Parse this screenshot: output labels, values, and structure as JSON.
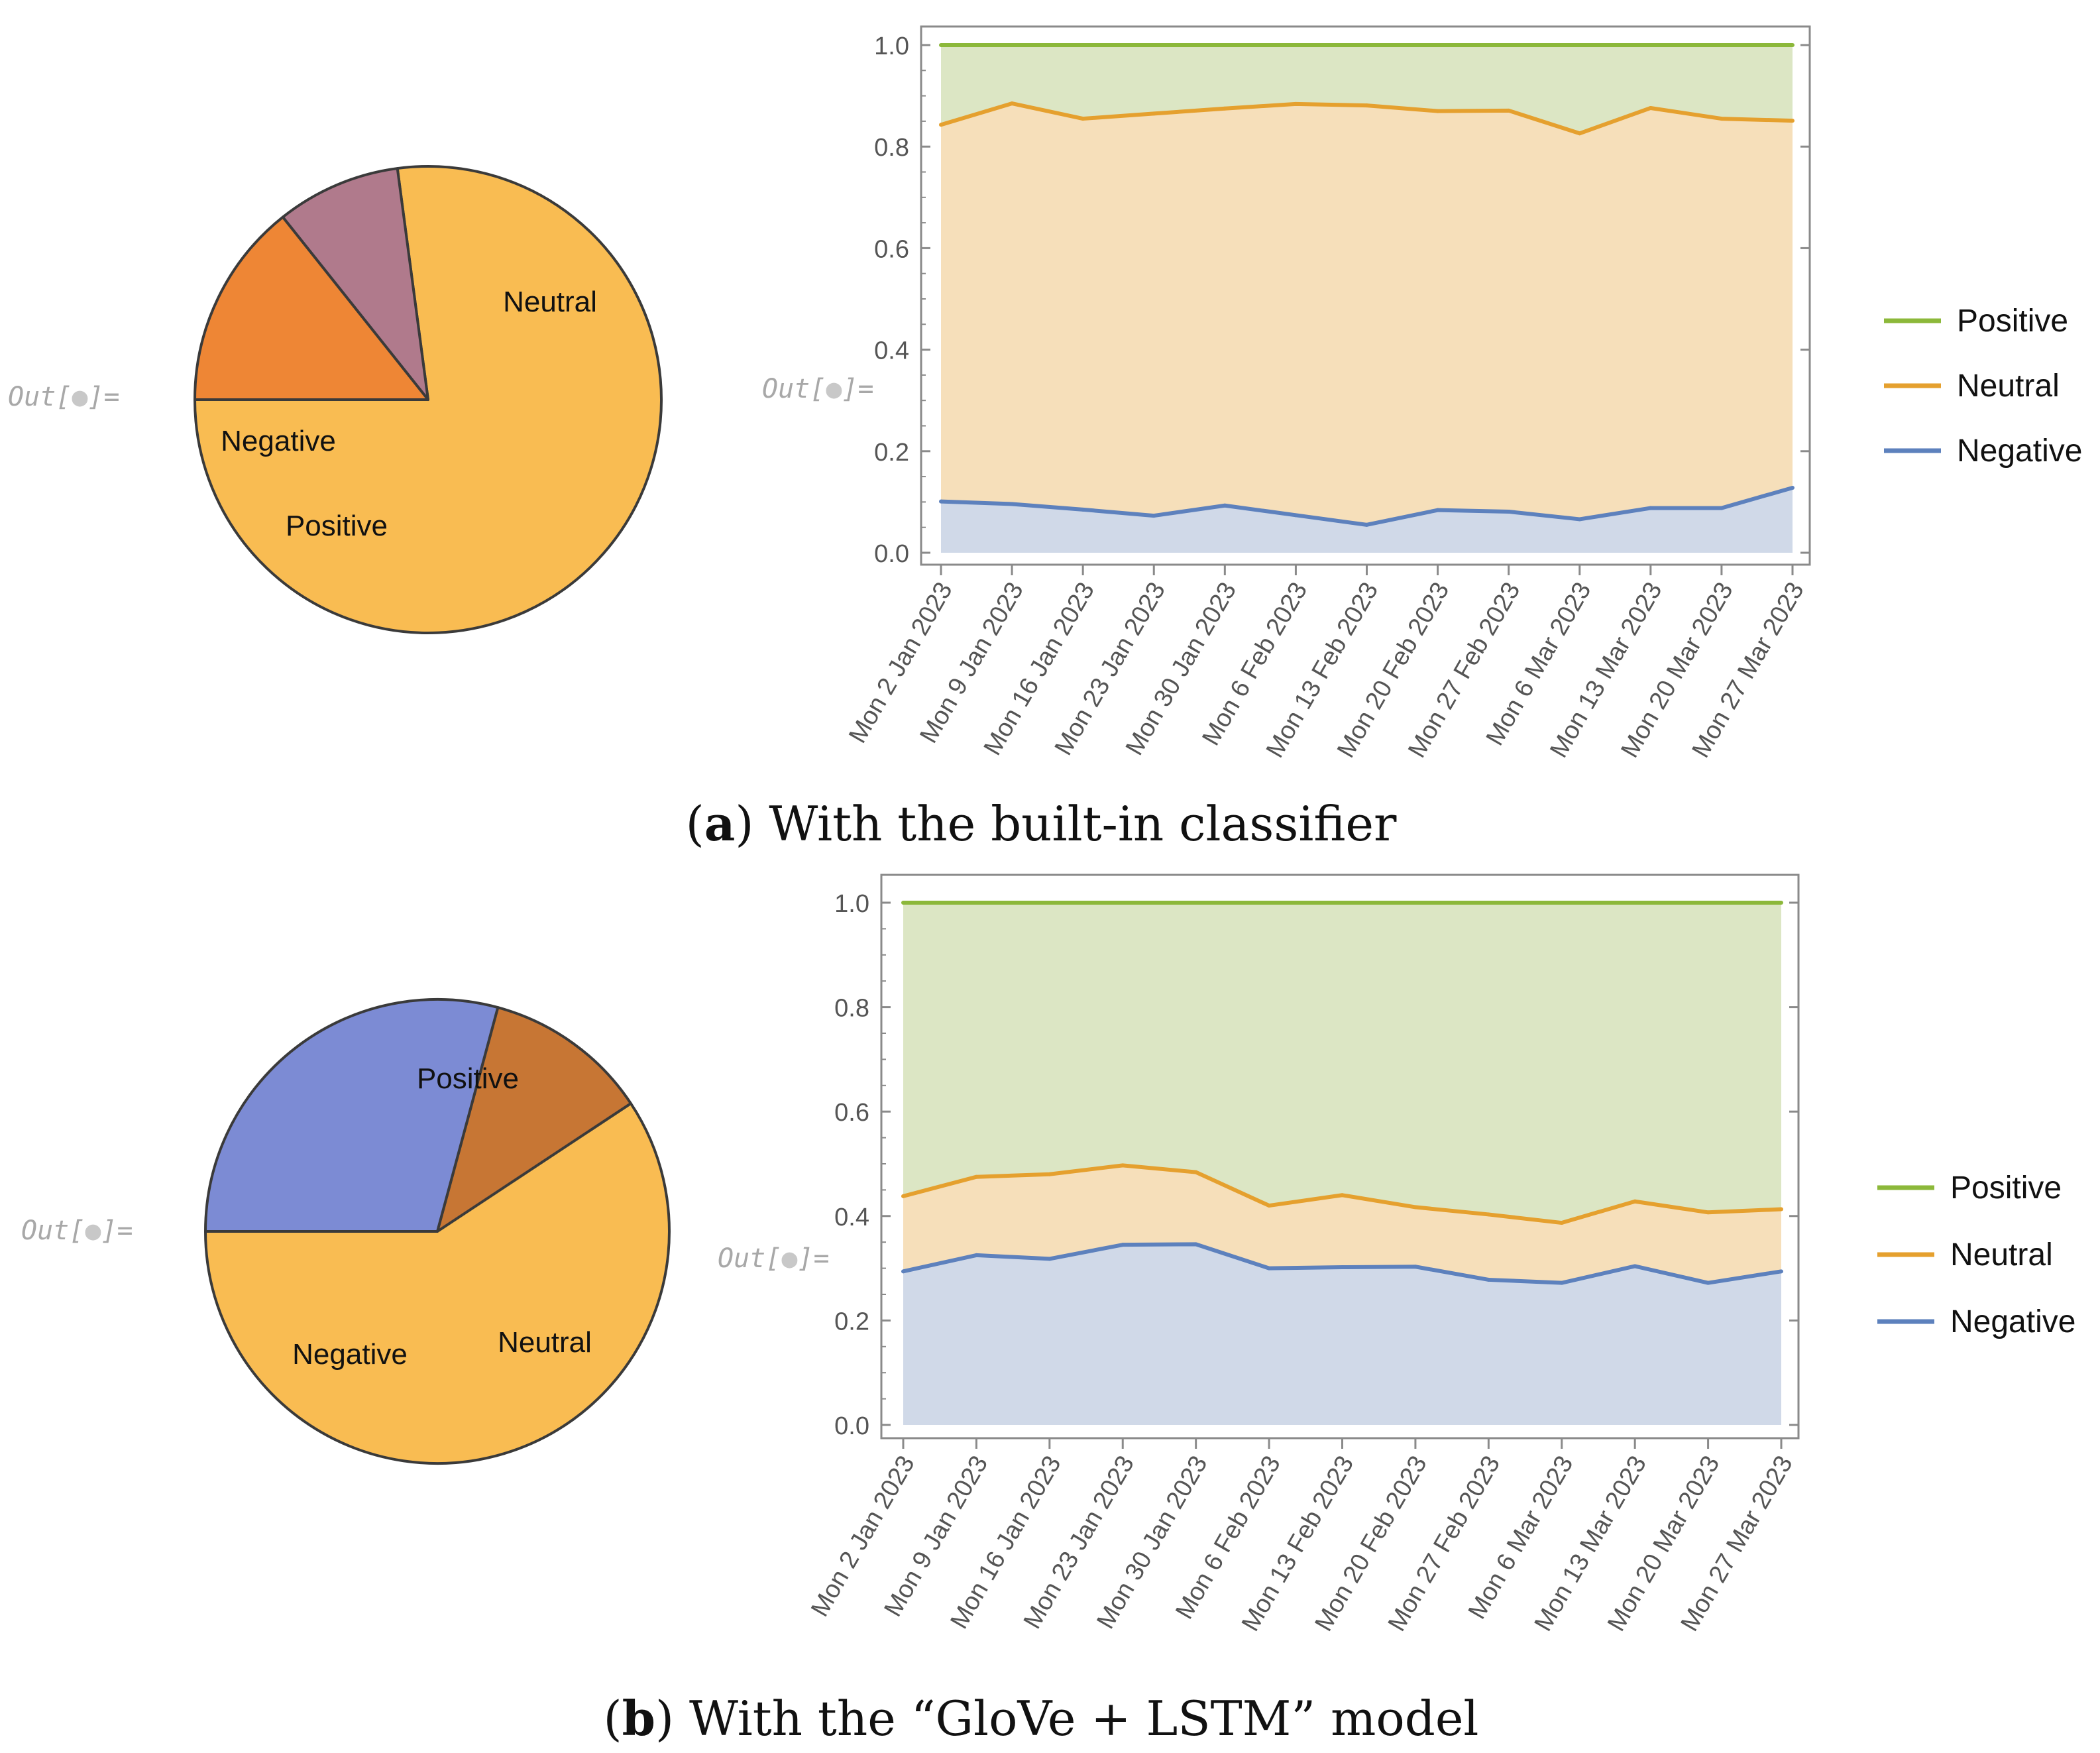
{
  "out_label": "Out[",
  "out_label_end": "]=",
  "colors": {
    "positive": "#8cb83a",
    "neutral": "#e5a02e",
    "negative": "#5d81bd",
    "positive_fill": "#dce6c4",
    "neutral_fill": "#f6dfba",
    "negative_fill": "#d0d9e8",
    "axis": "#8a8a8a",
    "tick_text": "#555555"
  },
  "panels": [
    {
      "caption_letter": "a",
      "caption_text": "With the built-in classifier",
      "pie": {
        "type": "pie",
        "slices": [
          {
            "label": "Neutral",
            "value": 0.771,
            "color": "#f9bc52"
          },
          {
            "label": "Negative",
            "value": 0.086,
            "color": "#b07a8c"
          },
          {
            "label": "Positive",
            "value": 0.143,
            "color": "#ee8635"
          }
        ]
      },
      "chart_data": {
        "type": "area",
        "x": [
          "Mon 2 Jan 2023",
          "Mon 9 Jan 2023",
          "Mon 16 Jan 2023",
          "Mon 23 Jan 2023",
          "Mon 30 Jan 2023",
          "Mon 6 Feb 2023",
          "Mon 13 Feb 2023",
          "Mon 20 Feb 2023",
          "Mon 27 Feb 2023",
          "Mon 6 Mar 2023",
          "Mon 13 Mar 2023",
          "Mon 20 Mar 2023",
          "Mon 27 Mar 2023"
        ],
        "series": [
          {
            "name": "Positive",
            "values": [
              1.0,
              1.0,
              1.0,
              1.0,
              1.0,
              1.0,
              1.0,
              1.0,
              1.0,
              1.0,
              1.0,
              1.0,
              1.0
            ]
          },
          {
            "name": "Neutral",
            "values": [
              0.843,
              0.885,
              0.855,
              0.865,
              0.875,
              0.884,
              0.881,
              0.87,
              0.871,
              0.826,
              0.876,
              0.855,
              0.851
            ]
          },
          {
            "name": "Negative",
            "values": [
              0.101,
              0.096,
              0.085,
              0.073,
              0.093,
              0.074,
              0.055,
              0.084,
              0.081,
              0.066,
              0.088,
              0.088,
              0.128
            ]
          }
        ],
        "ylim": [
          0,
          1.0
        ],
        "yticks": [
          "0.0",
          "0.2",
          "0.4",
          "0.6",
          "0.8",
          "1.0"
        ],
        "legend": "right"
      }
    },
    {
      "caption_letter": "b",
      "caption_text": "With the “GloVe + LSTM” model",
      "pie": {
        "type": "pie",
        "slices": [
          {
            "label": "Positive",
            "value": 0.593,
            "color": "#f9bc52"
          },
          {
            "label": "Neutral",
            "value": 0.115,
            "color": "#c77634"
          },
          {
            "label": "Negative",
            "value": 0.292,
            "color": "#7c8bd4"
          }
        ]
      },
      "chart_data": {
        "type": "area",
        "x": [
          "Mon 2 Jan 2023",
          "Mon 9 Jan 2023",
          "Mon 16 Jan 2023",
          "Mon 23 Jan 2023",
          "Mon 30 Jan 2023",
          "Mon 6 Feb 2023",
          "Mon 13 Feb 2023",
          "Mon 20 Feb 2023",
          "Mon 27 Feb 2023",
          "Mon 6 Mar 2023",
          "Mon 13 Mar 2023",
          "Mon 20 Mar 2023",
          "Mon 27 Mar 2023"
        ],
        "series": [
          {
            "name": "Positive",
            "values": [
              1.0,
              1.0,
              1.0,
              1.0,
              1.0,
              1.0,
              1.0,
              1.0,
              1.0,
              1.0,
              1.0,
              1.0,
              1.0
            ]
          },
          {
            "name": "Neutral",
            "values": [
              0.438,
              0.475,
              0.48,
              0.497,
              0.484,
              0.42,
              0.44,
              0.417,
              0.403,
              0.387,
              0.428,
              0.407,
              0.413
            ]
          },
          {
            "name": "Negative",
            "values": [
              0.294,
              0.325,
              0.318,
              0.345,
              0.346,
              0.3,
              0.302,
              0.303,
              0.278,
              0.272,
              0.304,
              0.272,
              0.294
            ]
          }
        ],
        "ylim": [
          0,
          1.0
        ],
        "yticks": [
          "0.0",
          "0.2",
          "0.4",
          "0.6",
          "0.8",
          "1.0"
        ],
        "legend": "right"
      }
    }
  ]
}
